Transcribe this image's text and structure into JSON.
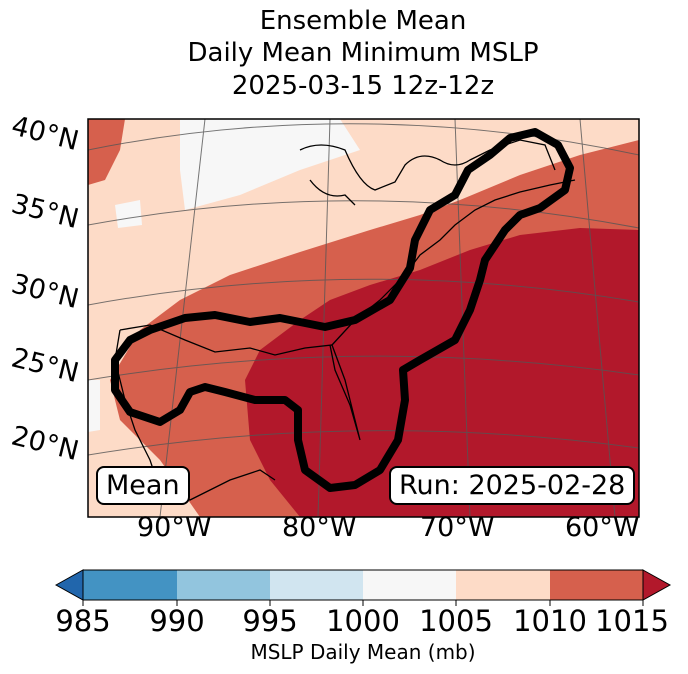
{
  "title": {
    "line1": "Ensemble Mean",
    "line2": "Daily Mean Minimum MSLP",
    "line3": "2025-03-15 12z-12z"
  },
  "map": {
    "lat_labels": [
      "40°N",
      "35°N",
      "30°N",
      "25°N",
      "20°N"
    ],
    "lon_labels": [
      "90°W",
      "80°W",
      "70°W",
      "60°W"
    ],
    "mean_box": "Mean",
    "run_box": "Run: 2025-02-28",
    "colors": {
      "band_985_990": "#4393c3",
      "band_990_995": "#92c5de",
      "band_995_1000": "#d1e5f0",
      "band_1000_1005": "#f7f7f7",
      "band_1005_1010": "#fddbc7",
      "band_1010_1015": "#d6604d",
      "band_over_1015": "#b2182b",
      "under_985": "#2166ac",
      "contour": "#000000"
    }
  },
  "colorbar": {
    "ticks": [
      "985",
      "990",
      "995",
      "1000",
      "1005",
      "1010",
      "1015"
    ],
    "label": "MSLP Daily Mean (mb)"
  }
}
